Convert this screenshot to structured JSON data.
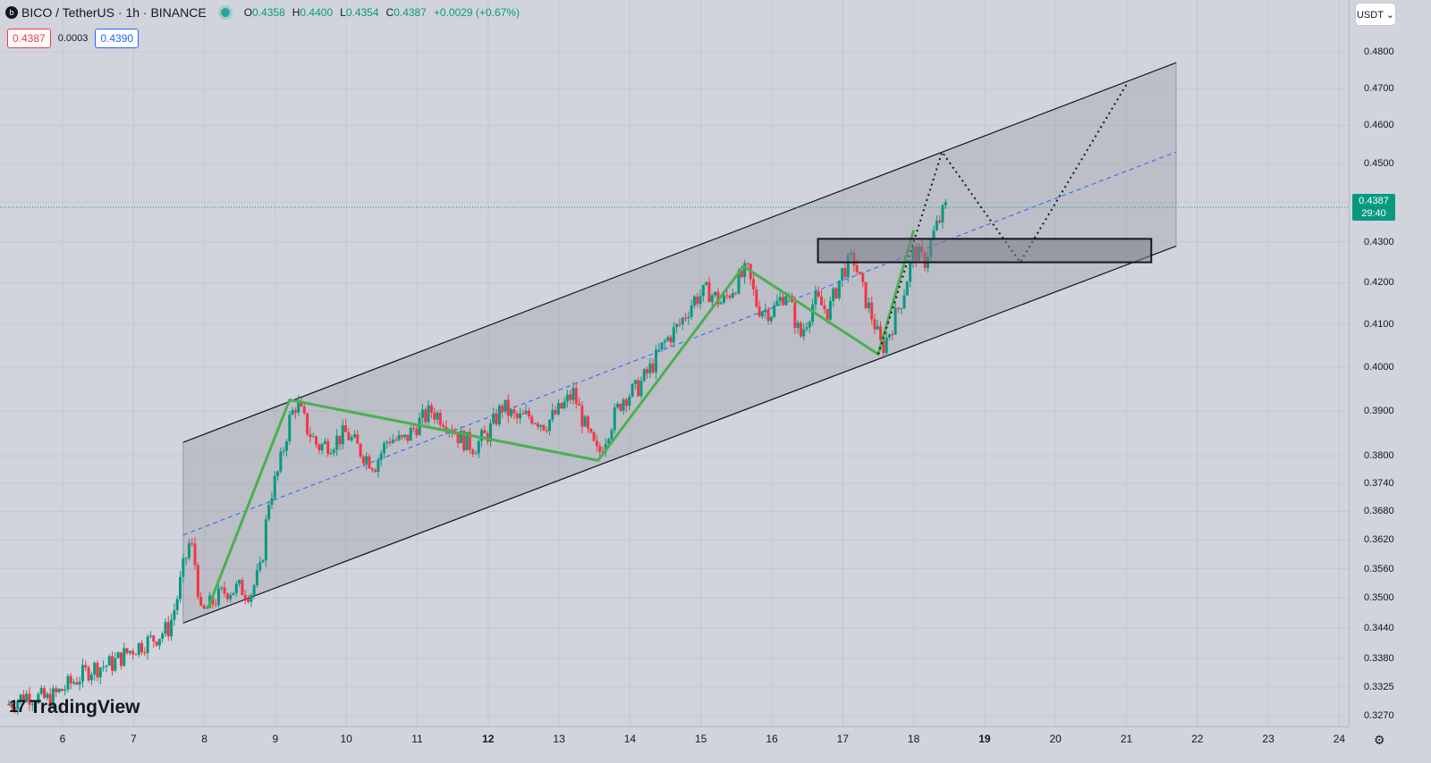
{
  "header": {
    "symbol_icon": "b",
    "title": "BICO / TetherUS · 1h · BINANCE",
    "status_color": "#26a69a",
    "ohlc": [
      {
        "k": "O",
        "v": "0.4358"
      },
      {
        "k": "H",
        "v": "0.4400"
      },
      {
        "k": "L",
        "v": "0.4354"
      },
      {
        "k": "C",
        "v": "0.4387"
      }
    ],
    "change": "+0.0029 (+0.67%)"
  },
  "quote": {
    "bid": "0.4387",
    "spread": "0.0003",
    "ask": "0.4390"
  },
  "currency_button": "USDT ⌄",
  "last_price": {
    "value": "0.4387",
    "countdown": "29:40",
    "price": 0.4387,
    "color": "#089981"
  },
  "price_axis": {
    "ticks": [
      "0.4800",
      "0.4700",
      "0.4600",
      "0.4500",
      "0.4400",
      "0.4300",
      "0.4200",
      "0.4100",
      "0.4000",
      "0.3900",
      "0.3800",
      "0.3740",
      "0.3680",
      "0.3620",
      "0.3560",
      "0.3500",
      "0.3440",
      "0.3380",
      "0.3325",
      "0.3270"
    ]
  },
  "time_axis": {
    "ticks": [
      {
        "label": "6",
        "bold": false
      },
      {
        "label": "7",
        "bold": false
      },
      {
        "label": "8",
        "bold": false
      },
      {
        "label": "9",
        "bold": false
      },
      {
        "label": "10",
        "bold": false
      },
      {
        "label": "11",
        "bold": false
      },
      {
        "label": "12",
        "bold": true
      },
      {
        "label": "13",
        "bold": false
      },
      {
        "label": "14",
        "bold": false
      },
      {
        "label": "15",
        "bold": false
      },
      {
        "label": "16",
        "bold": false
      },
      {
        "label": "17",
        "bold": false
      },
      {
        "label": "18",
        "bold": false
      },
      {
        "label": "19",
        "bold": true
      },
      {
        "label": "20",
        "bold": false
      },
      {
        "label": "21",
        "bold": false
      },
      {
        "label": "22",
        "bold": false
      },
      {
        "label": "23",
        "bold": false
      },
      {
        "label": "24",
        "bold": false
      }
    ]
  },
  "logo": {
    "mark": "17",
    "text": "TradingView"
  },
  "settings_icon": "⚙",
  "colors": {
    "up": "#089981",
    "down": "#f23645",
    "zigzag": "#4caf50",
    "midline": "#2962ff",
    "channel_fill": "#9598a1"
  },
  "chart_data": {
    "type": "candlestick",
    "symbol": "BICO / TetherUS",
    "interval": "1h",
    "exchange": "BINANCE",
    "x_domain": [
      5.2,
      24.3
    ],
    "y_scale": "log",
    "ylim": [
      0.3245,
      0.485
    ],
    "close_path": [
      [
        5.2,
        0.329
      ],
      [
        5.5,
        0.331
      ],
      [
        5.8,
        0.33
      ],
      [
        6.1,
        0.333
      ],
      [
        6.4,
        0.336
      ],
      [
        6.7,
        0.337
      ],
      [
        7.0,
        0.34
      ],
      [
        7.3,
        0.342
      ],
      [
        7.5,
        0.344
      ],
      [
        7.6,
        0.349
      ],
      [
        7.7,
        0.356
      ],
      [
        7.8,
        0.362
      ],
      [
        7.88,
        0.356
      ],
      [
        7.95,
        0.3465
      ],
      [
        8.1,
        0.349
      ],
      [
        8.3,
        0.3515
      ],
      [
        8.5,
        0.352
      ],
      [
        8.65,
        0.351
      ],
      [
        8.8,
        0.356
      ],
      [
        8.9,
        0.37
      ],
      [
        9.05,
        0.377
      ],
      [
        9.2,
        0.388
      ],
      [
        9.3,
        0.392
      ],
      [
        9.45,
        0.386
      ],
      [
        9.6,
        0.382
      ],
      [
        9.8,
        0.383
      ],
      [
        10.0,
        0.385
      ],
      [
        10.2,
        0.381
      ],
      [
        10.4,
        0.378
      ],
      [
        10.6,
        0.384
      ],
      [
        10.8,
        0.383
      ],
      [
        11.0,
        0.387
      ],
      [
        11.2,
        0.39
      ],
      [
        11.4,
        0.388
      ],
      [
        11.6,
        0.384
      ],
      [
        11.8,
        0.382
      ],
      [
        12.0,
        0.385
      ],
      [
        12.2,
        0.391
      ],
      [
        12.4,
        0.388
      ],
      [
        12.6,
        0.389
      ],
      [
        12.8,
        0.387
      ],
      [
        13.0,
        0.39
      ],
      [
        13.2,
        0.394
      ],
      [
        13.4,
        0.385
      ],
      [
        13.55,
        0.38
      ],
      [
        13.7,
        0.386
      ],
      [
        13.9,
        0.393
      ],
      [
        14.1,
        0.395
      ],
      [
        14.3,
        0.4
      ],
      [
        14.5,
        0.406
      ],
      [
        14.7,
        0.41
      ],
      [
        14.9,
        0.416
      ],
      [
        15.1,
        0.418
      ],
      [
        15.3,
        0.415
      ],
      [
        15.5,
        0.42
      ],
      [
        15.65,
        0.423
      ],
      [
        15.8,
        0.414
      ],
      [
        16.0,
        0.413
      ],
      [
        16.2,
        0.418
      ],
      [
        16.4,
        0.407
      ],
      [
        16.6,
        0.416
      ],
      [
        16.8,
        0.413
      ],
      [
        17.0,
        0.423
      ],
      [
        17.15,
        0.426
      ],
      [
        17.3,
        0.417
      ],
      [
        17.45,
        0.41
      ],
      [
        17.55,
        0.404
      ],
      [
        17.7,
        0.41
      ],
      [
        17.85,
        0.417
      ],
      [
        18.0,
        0.428
      ],
      [
        18.15,
        0.425
      ],
      [
        18.3,
        0.433
      ],
      [
        18.45,
        0.4387
      ]
    ],
    "channel": {
      "upper": [
        [
          7.7,
          0.383
        ],
        [
          21.7,
          0.477
        ]
      ],
      "lower": [
        [
          7.7,
          0.345
        ],
        [
          21.7,
          0.429
        ]
      ],
      "mid": [
        [
          7.7,
          0.363
        ],
        [
          21.7,
          0.453
        ]
      ]
    },
    "zigzag": [
      [
        8.05,
        0.348
      ],
      [
        9.2,
        0.3925
      ],
      [
        13.55,
        0.379
      ],
      [
        15.6,
        0.424
      ],
      [
        17.5,
        0.403
      ],
      [
        18.0,
        0.433
      ]
    ],
    "projection": [
      [
        17.5,
        0.403
      ],
      [
        18.4,
        0.453
      ],
      [
        19.5,
        0.425
      ],
      [
        21.0,
        0.471
      ]
    ],
    "zone": {
      "x": [
        16.65,
        21.35
      ],
      "y": [
        0.425,
        0.4308
      ]
    }
  }
}
